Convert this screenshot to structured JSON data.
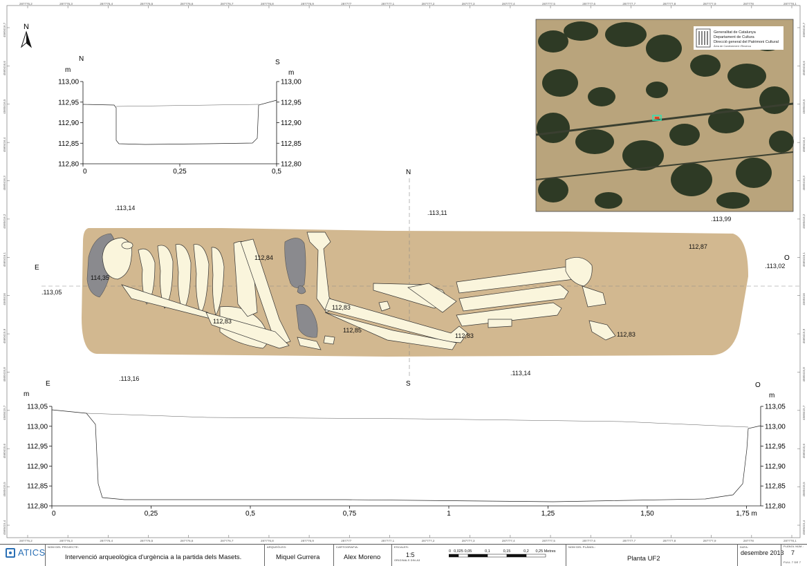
{
  "north_arrow": "N",
  "frame_ticks_top": [
    "287776,2",
    "287776,3",
    "287776,4",
    "287776,5",
    "287776,6",
    "287776,7",
    "287776,8",
    "287776,9",
    "287777",
    "287777,1",
    "287777,2",
    "287777,3",
    "287777,4",
    "287777,5",
    "287777,6",
    "287777,7",
    "287777,8",
    "287777,9",
    "287778",
    "287778,1"
  ],
  "frame_ticks_left": [
    "4560416,7",
    "4560416,6",
    "4560416,5",
    "4560416,4",
    "4560416,3",
    "4560416,2",
    "4560416,1",
    "4560416",
    "4560415,9",
    "4560415,8",
    "4560415,7",
    "4560415,6",
    "4560415,5",
    "4560415,4"
  ],
  "section_ns": {
    "left_dir": "N",
    "right_dir": "S",
    "unit_left": "m",
    "unit_right": "m",
    "y_ticks": [
      "113,00",
      "112,95",
      "112,90",
      "112,85",
      "112,80"
    ],
    "x_ticks": [
      "0",
      "0,25",
      "0,5"
    ]
  },
  "plan": {
    "north": "N",
    "south": "S",
    "east": "E",
    "west": "O",
    "elevations": [
      {
        "label": ".113,14"
      },
      {
        "label": ".113,11"
      },
      {
        "label": ".113,99"
      },
      {
        "label": "112,87"
      },
      {
        "label": "112,84"
      },
      {
        "label": "114,35"
      },
      {
        "label": ".113,05"
      },
      {
        "label": ".113,02"
      },
      {
        "label": "112,83"
      },
      {
        "label": "112,83"
      },
      {
        "label": "112,85"
      },
      {
        "label": "112,83"
      },
      {
        "label": "112,83"
      },
      {
        "label": ".113,16"
      },
      {
        "label": ".113,14"
      }
    ]
  },
  "section_eo": {
    "left_dir": "E",
    "right_dir": "O",
    "unit_left": "m",
    "unit_right": "m",
    "y_ticks": [
      "113,05",
      "113,00",
      "112,95",
      "112,90",
      "112,85",
      "112,80"
    ],
    "x_ticks": [
      "0",
      "0,25",
      "0,5",
      "0,75",
      "1",
      "1,25",
      "1,50",
      "1,75 m"
    ]
  },
  "inset": {
    "org_lines": [
      "Generalitat de Catalunya",
      "Departament de Cultura",
      "Direcció general del Patrimoni Cultural",
      "Àrea de Coneixement i Recerca"
    ]
  },
  "titleblock": {
    "logo": "ATICS",
    "project_head": "NOM DEL PROJECTE:",
    "project": "Intervenció arqueològica d'urgència a la partida dels Masets.",
    "archaeologist_head": "ARQUEÒLEG:",
    "archaeologist": "Miquel Gurrera",
    "cartography_head": "CARTOGRAFIA:",
    "cartographer": "Alex Moreno",
    "scales_head": "ESCALES:",
    "scale": "1:5",
    "scale_note": "ORIGINALS DIN-A3",
    "scale_bar_labels": [
      "0",
      "0,025",
      "0,05",
      "0,1",
      "0,15",
      "0,2",
      "0,25 Metres"
    ],
    "plan_name_head": "NOM DEL PLÀNOL:",
    "plan_name": "Planta UF2",
    "date_head": "DATA:",
    "date": "desembre 2013",
    "plan_num_head": "PLÀNOL NÚM.:",
    "plan_num": "7",
    "sheet": "FULL 7 DE 7"
  },
  "colors": {
    "soil": "#d2b890",
    "bone": "#faf5dc",
    "stone": "#8a8a8e",
    "inset_dark": "#2d3a24",
    "inset_light": "#b8a27a"
  }
}
